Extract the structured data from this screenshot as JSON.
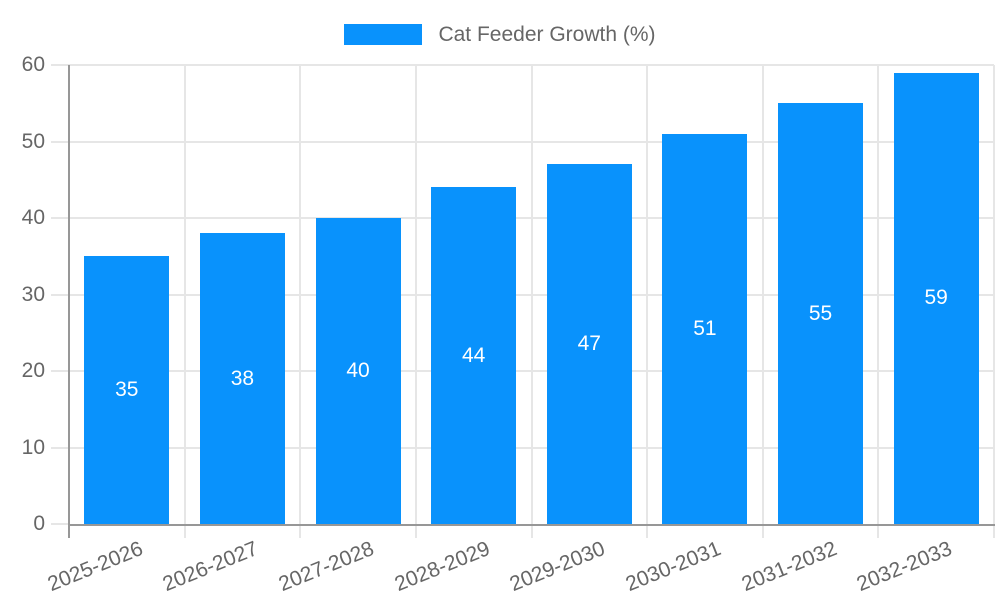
{
  "legend": {
    "label": "Cat Feeder Growth (%)"
  },
  "colors": {
    "bar": "#0992fc",
    "bar_value_text": "#ffffff",
    "grid": "#e6e6e6",
    "axis_border": "#979797",
    "tick_text": "#666666",
    "background": "#ffffff"
  },
  "chart_data": {
    "type": "bar",
    "title": "Cat Feeder Growth (%)",
    "categories": [
      "2025-2026",
      "2026-2027",
      "2027-2028",
      "2028-2029",
      "2029-2030",
      "2030-2031",
      "2031-2032",
      "2032-2033"
    ],
    "values": [
      35,
      38,
      40,
      44,
      47,
      51,
      55,
      59
    ],
    "xlabel": "",
    "ylabel": "",
    "ylim": [
      0,
      60
    ],
    "yticks": [
      0,
      10,
      20,
      30,
      40,
      50,
      60
    ],
    "grid": true,
    "legend_position": "top-center",
    "show_bar_value_labels": true,
    "x_tick_rotation_deg": -22
  }
}
